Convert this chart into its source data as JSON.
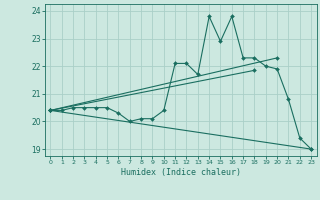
{
  "title": "",
  "xlabel": "Humidex (Indice chaleur)",
  "bg_color": "#cce8e0",
  "grid_color": "#aacfc8",
  "line_color": "#1a6e60",
  "xlim": [
    -0.5,
    23.5
  ],
  "ylim": [
    18.75,
    24.25
  ],
  "xticks": [
    0,
    1,
    2,
    3,
    4,
    5,
    6,
    7,
    8,
    9,
    10,
    11,
    12,
    13,
    14,
    15,
    16,
    17,
    18,
    19,
    20,
    21,
    22,
    23
  ],
  "yticks": [
    19,
    20,
    21,
    22,
    23,
    24
  ],
  "line1_x": [
    0,
    1,
    2,
    3,
    4,
    5,
    6,
    7,
    8,
    9,
    10,
    11,
    12,
    13,
    14,
    15,
    16,
    17,
    18,
    19,
    20,
    21,
    22,
    23
  ],
  "line1_y": [
    20.4,
    20.4,
    20.5,
    20.5,
    20.5,
    20.5,
    20.3,
    20.0,
    20.1,
    20.1,
    20.4,
    22.1,
    22.1,
    21.7,
    23.8,
    22.9,
    23.8,
    22.3,
    22.3,
    22.0,
    21.9,
    20.8,
    19.4,
    19.0
  ],
  "line2_x": [
    0,
    20
  ],
  "line2_y": [
    20.4,
    22.3
  ],
  "line3_x": [
    0,
    23
  ],
  "line3_y": [
    20.4,
    19.0
  ],
  "line4_x": [
    0,
    18
  ],
  "line4_y": [
    20.4,
    21.85
  ]
}
